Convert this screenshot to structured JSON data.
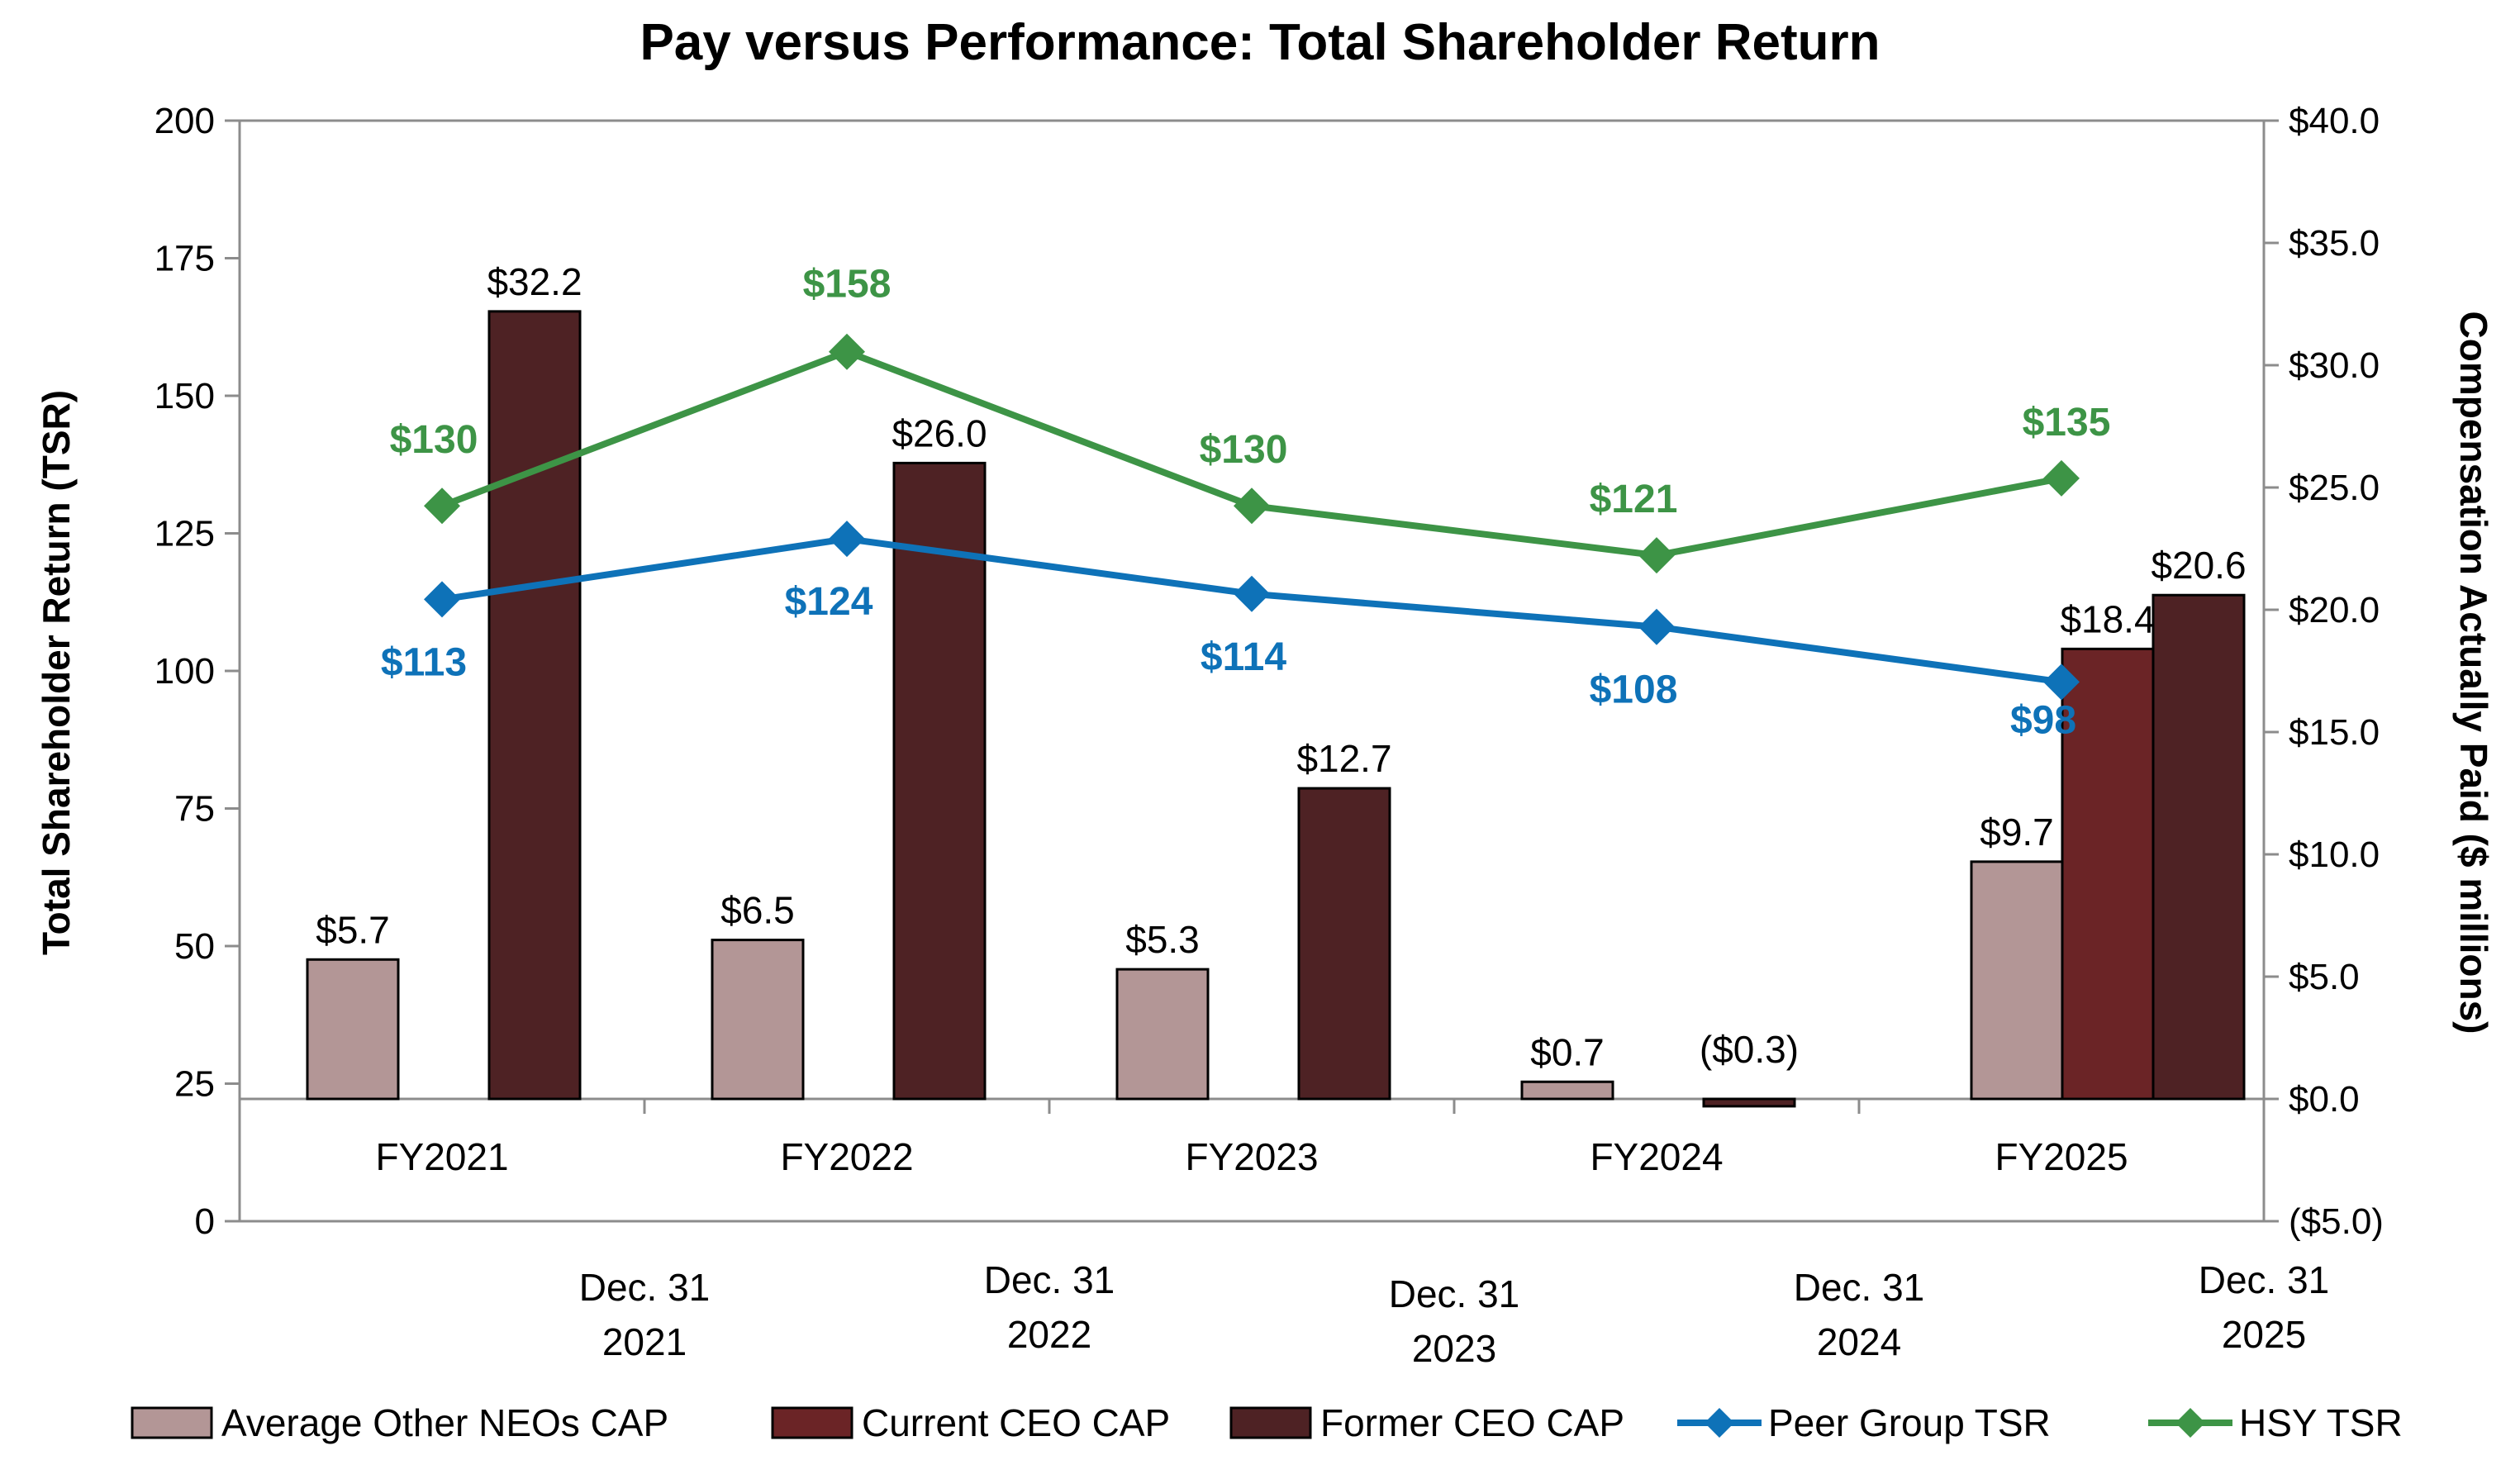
{
  "chart_data": {
    "type": "bar",
    "title": "Pay versus Performance: Total Shareholder Return",
    "categories": [
      "FY2021",
      "FY2022",
      "FY2023",
      "FY2024",
      "FY2025"
    ],
    "date_labels": [
      [
        "Dec. 31",
        "2021"
      ],
      [
        "Dec. 31",
        "2022"
      ],
      [
        "Dec. 31",
        "2023"
      ],
      [
        "Dec. 31",
        "2024"
      ],
      [
        "Dec. 31",
        "2025"
      ]
    ],
    "left_axis": {
      "label": "Total Shareholder Return (TSR)",
      "min": 0,
      "max": 200,
      "ticks": [
        "0",
        "25",
        "50",
        "75",
        "100",
        "125",
        "150",
        "175",
        "200"
      ]
    },
    "right_axis": {
      "label": "Compensation Actually Paid ($ millions)",
      "min": -5,
      "max": 40,
      "ticks": [
        "($5.0)",
        "$0.0",
        "$5.0",
        "$10.0",
        "$15.0",
        "$20.0",
        "$25.0",
        "$30.0",
        "$35.0",
        "$40.0"
      ]
    },
    "bar_series": [
      {
        "name": "Average Other NEOs CAP",
        "color": "#b39696",
        "values": [
          5.7,
          6.5,
          5.3,
          0.7,
          9.7
        ],
        "labels": [
          "$5.7",
          "$6.5",
          "$5.3",
          "$0.7",
          "$9.7"
        ]
      },
      {
        "name": "Current CEO CAP",
        "color": "#6b2426",
        "values": [
          null,
          null,
          null,
          null,
          18.4
        ],
        "labels": [
          null,
          null,
          null,
          null,
          "$18.4"
        ]
      },
      {
        "name": "Former CEO CAP",
        "color": "#4e2224",
        "values": [
          32.2,
          26.0,
          12.7,
          -0.3,
          20.6
        ],
        "labels": [
          "$32.2",
          "$26.0",
          "$12.7",
          "($0.3)",
          "$20.6"
        ]
      }
    ],
    "line_series": [
      {
        "name": "Peer Group TSR",
        "color": "#0e72b8",
        "values": [
          113,
          124,
          114,
          108,
          98
        ],
        "labels": [
          "$113",
          "$124",
          "$114",
          "$108",
          "$98"
        ]
      },
      {
        "name": "HSY TSR",
        "color": "#3d9446",
        "values": [
          130,
          158,
          130,
          121,
          135
        ],
        "labels": [
          "$130",
          "$158",
          "$130",
          "$121",
          "$135"
        ]
      }
    ],
    "legend_position": "bottom",
    "grid": false
  }
}
